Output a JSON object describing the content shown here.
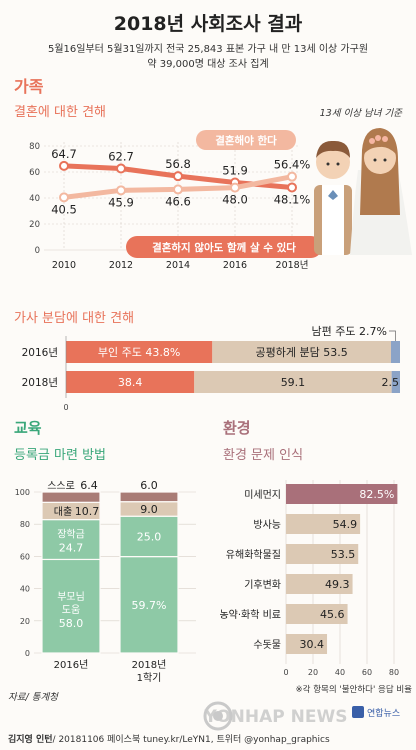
{
  "header": {
    "title": "2018년 사회조사 결과",
    "subtitle_line1": "5월16일부터 5월31일까지 전국 25,843 표본 가구 내 만 13세 이상 가구원",
    "subtitle_line2": "약 39,000명 대상 조사 집계"
  },
  "sections": {
    "family": "가족",
    "marriage": "결혼에 대한 견해",
    "marriage_note": "13세 이상 남녀 기준",
    "housework": "가사 분담에 대한 견해",
    "education": "교육",
    "tuition": "등록금 마련 방법",
    "environment": "환경",
    "env_issue": "환경 문제 인식"
  },
  "footer": {
    "source": "자료/ 통계청",
    "credit_name": "김지영 인턴",
    "credit_rest": "/ 20181106 페이스북 tuney.kr/LeYN1, 트위터 @yonhap_graphics",
    "watermark": "YONHAP NEWS",
    "logo_text": "연합뉴스"
  },
  "colors": {
    "accent": "#e8735a",
    "accent_light": "#f3b8a0",
    "beige": "#dcc9b4",
    "blue": "#8ba3c7",
    "green": "#8ec9a6",
    "brown": "#a97c76",
    "mauve": "#a9707a"
  },
  "chart_data": [
    {
      "id": "marriage",
      "type": "line",
      "x": [
        "2010",
        "2012",
        "2014",
        "2016",
        "2018년"
      ],
      "ylim": [
        0,
        80
      ],
      "yticks": [
        "0",
        "20",
        "40",
        "60",
        "80"
      ],
      "series": [
        {
          "name": "결혼해야 한다",
          "values": [
            64.7,
            62.7,
            56.8,
            51.9,
            48.1
          ],
          "labels": [
            "64.7",
            "62.7",
            "56.8",
            "51.9",
            "48.1%"
          ]
        },
        {
          "name": "결혼하지 않아도 함께 살 수 있다",
          "values": [
            40.5,
            45.9,
            46.6,
            48.0,
            56.4
          ],
          "labels": [
            "40.5",
            "45.9",
            "46.6",
            "48.0",
            "56.4%"
          ]
        }
      ]
    },
    {
      "id": "housework",
      "type": "bar",
      "orientation": "horizontal-stacked",
      "categories": [
        "2016년",
        "2018년"
      ],
      "xtick": "0",
      "series": [
        {
          "name": "부인 주도",
          "values": [
            43.8,
            38.4
          ]
        },
        {
          "name": "공평하게 분담",
          "values": [
            53.5,
            59.1
          ]
        },
        {
          "name": "남편 주도",
          "values": [
            2.7,
            2.5
          ]
        }
      ],
      "labels": [
        [
          "부인 주도 43.8%",
          "공평하게 분담 53.5",
          "남편 주도 2.7%"
        ],
        [
          "38.4",
          "59.1",
          "2.5"
        ]
      ]
    },
    {
      "id": "tuition",
      "type": "bar",
      "orientation": "vertical-stacked",
      "categories": [
        "2016년",
        "2018년"
      ],
      "category_sub": [
        "",
        "1학기"
      ],
      "ylim": [
        0,
        100
      ],
      "yticks": [
        "0",
        "20",
        "40",
        "60",
        "80",
        "100"
      ],
      "series": [
        {
          "name": "부모님 도움",
          "values": [
            58.0,
            59.7
          ]
        },
        {
          "name": "장학금",
          "values": [
            24.7,
            25.0
          ]
        },
        {
          "name": "대출",
          "values": [
            10.7,
            9.0
          ]
        },
        {
          "name": "스스로",
          "values": [
            6.4,
            6.0
          ]
        }
      ],
      "labels": [
        [
          "부모님",
          "도움",
          "58.0",
          "장학금",
          "24.7",
          "대출",
          "10.7",
          "스스로",
          "6.4"
        ],
        [
          "59.7%",
          "25.0",
          "9.0",
          "6.0"
        ]
      ]
    },
    {
      "id": "environment",
      "type": "bar",
      "orientation": "horizontal",
      "categories": [
        "미세먼지",
        "방사능",
        "유해화학물질",
        "기후변화",
        "농약·화학 비료",
        "수돗물"
      ],
      "values": [
        82.5,
        54.9,
        53.5,
        49.3,
        45.6,
        30.4
      ],
      "value_labels": [
        "82.5%",
        "54.9",
        "53.5",
        "49.3",
        "45.6",
        "30.4"
      ],
      "xlim": [
        0,
        80
      ],
      "xticks": [
        "0",
        "20",
        "40",
        "60",
        "80"
      ],
      "note": "※각 항목의 '불안하다' 응답 비율"
    }
  ]
}
